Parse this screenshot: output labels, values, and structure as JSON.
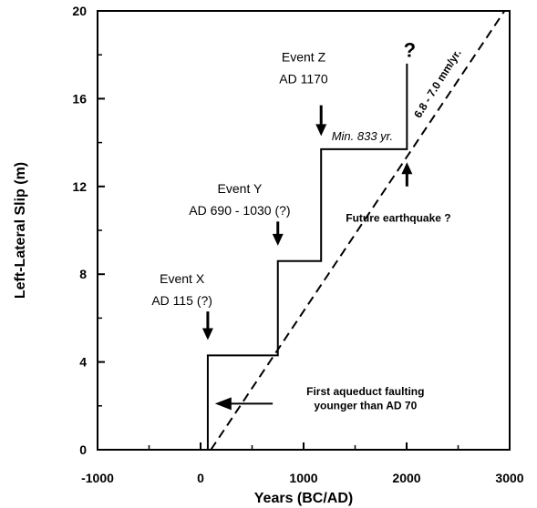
{
  "chart_data": {
    "type": "line",
    "xlabel": "Years (BC/AD)",
    "ylabel": "Left-Lateral Slip (m)",
    "xlim": [
      -1000,
      3000
    ],
    "ylim": [
      0,
      20
    ],
    "x_ticks": [
      -1000,
      0,
      1000,
      2000,
      3000
    ],
    "y_ticks": [
      0,
      4,
      8,
      12,
      16,
      20
    ],
    "grid": false,
    "series": [
      {
        "style": "solid-step",
        "points": [
          [
            70,
            0
          ],
          [
            70,
            4.3
          ],
          [
            750,
            4.3
          ],
          [
            750,
            8.6
          ],
          [
            1170,
            8.6
          ],
          [
            1170,
            13.7
          ],
          [
            2003,
            13.7
          ],
          [
            2003,
            17.6
          ]
        ]
      },
      {
        "name": "6.8 - 7.0 mm/yr.",
        "style": "dashed",
        "points": [
          [
            100,
            0
          ],
          [
            2950,
            20
          ]
        ]
      }
    ],
    "annotations": [
      {
        "id": "event-z-name",
        "text": "Event Z",
        "x": 1000,
        "y": 17.7
      },
      {
        "id": "event-z-date",
        "text": "AD 1170",
        "x": 1000,
        "y": 16.7
      },
      {
        "id": "event-y-name",
        "text": "Event Y",
        "x": 380,
        "y": 11.7
      },
      {
        "id": "event-y-date",
        "text": "AD 690 - 1030 (?)",
        "x": 380,
        "y": 10.7
      },
      {
        "id": "event-x-name",
        "text": "Event X",
        "x": -180,
        "y": 7.6
      },
      {
        "id": "event-x-date",
        "text": "AD 115 (?)",
        "x": -180,
        "y": 6.6
      },
      {
        "id": "min-interval",
        "text": "Min. 833 yr.",
        "x": 1570,
        "y": 14.1
      },
      {
        "id": "question-mark",
        "text": "?",
        "x": 2030,
        "y": 17.9
      },
      {
        "id": "future-eq",
        "text": "Future earthquake ?",
        "x": 1920,
        "y": 10.4
      },
      {
        "id": "aqueduct-line1",
        "text": "First aqueduct faulting",
        "x": 1600,
        "y": 2.5
      },
      {
        "id": "aqueduct-line2",
        "text": "younger than AD 70",
        "x": 1600,
        "y": 1.85
      },
      {
        "id": "rate-label",
        "text": "6.8 - 7.0 mm/yr.",
        "x": 2330,
        "y": 16.6
      }
    ],
    "arrows": [
      {
        "id": "arrow-event-z",
        "x": 1170,
        "y_from": 15.7,
        "y_to": 14.3
      },
      {
        "id": "arrow-event-y",
        "x": 750,
        "y_from": 10.4,
        "y_to": 9.3
      },
      {
        "id": "arrow-event-x",
        "x": 70,
        "y_from": 6.3,
        "y_to": 5.0
      },
      {
        "id": "arrow-future",
        "x": 2003,
        "y_from": 12.0,
        "y_to": 13.1
      },
      {
        "id": "arrow-aqueduct",
        "x_from": 700,
        "x_to": 140,
        "y": 2.1
      }
    ]
  }
}
